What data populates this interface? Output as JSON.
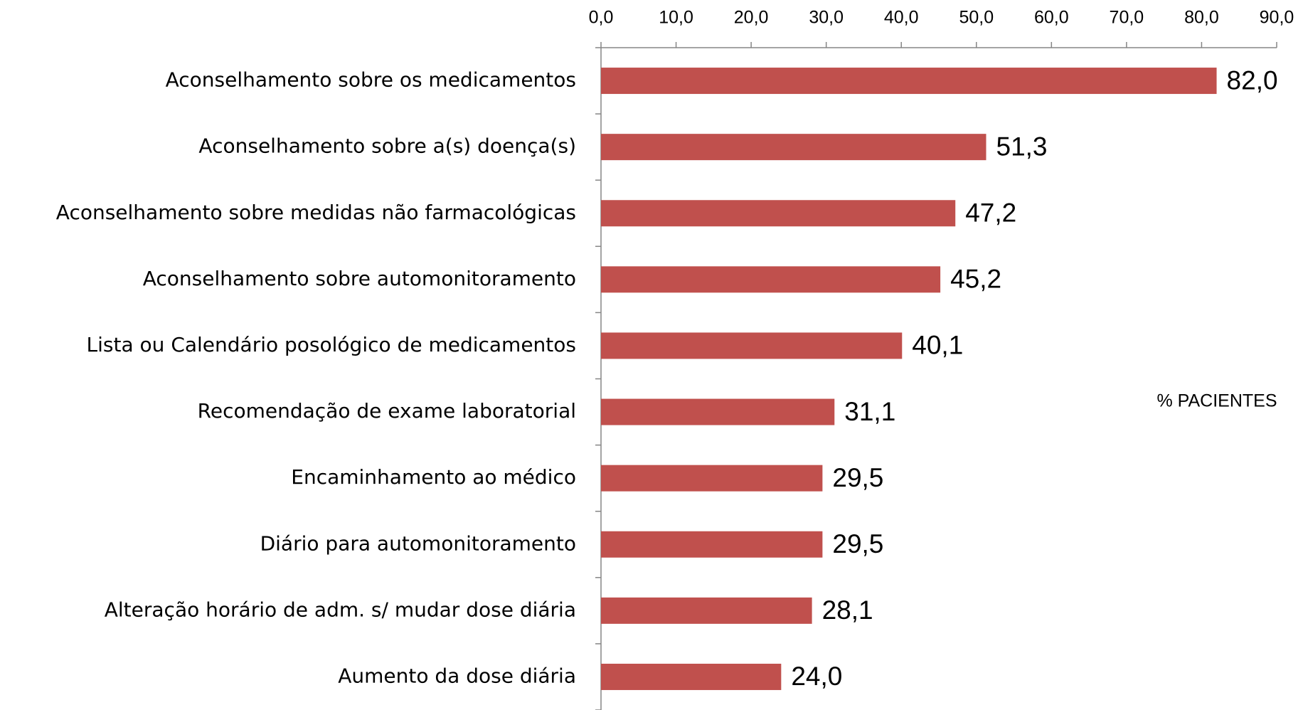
{
  "chart_data": {
    "type": "bar",
    "orientation": "horizontal",
    "xlabel": "% PACIENTES",
    "categories": [
      "Aconselhamento sobre os medicamentos",
      "Aconselhamento sobre a(s) doença(s)",
      "Aconselhamento  sobre medidas não farmacológicas",
      "Aconselhamento sobre automonitoramento",
      "Lista ou Calendário posológico de medicamentos",
      "Recomendação de exame laboratorial",
      "Encaminhamento ao médico",
      "Diário para automonitoramento",
      "Alteração horário de adm. s/ mudar dose diária",
      "Aumento da dose diária"
    ],
    "values": [
      82.0,
      51.3,
      47.2,
      45.2,
      40.1,
      31.1,
      29.5,
      29.5,
      28.1,
      24.0
    ],
    "value_labels": [
      "82,0",
      "51,3",
      "47,2",
      "45,2",
      "40,1",
      "31,1",
      "29,5",
      "29,5",
      "28,1",
      "24,0"
    ],
    "color": "#c0504d",
    "xlim": [
      0,
      90
    ],
    "xticks": [
      {
        "value": 0,
        "label": "0,0"
      },
      {
        "value": 10,
        "label": "10,0"
      },
      {
        "value": 20,
        "label": "20,0"
      },
      {
        "value": 30,
        "label": "30,0"
      },
      {
        "value": 40,
        "label": "40,0"
      },
      {
        "value": 50,
        "label": "50,0"
      },
      {
        "value": 60,
        "label": "60,0"
      },
      {
        "value": 70,
        "label": "70,0"
      },
      {
        "value": 80,
        "label": "80,0"
      },
      {
        "value": 90,
        "label": "90,0"
      }
    ],
    "grid": false
  }
}
